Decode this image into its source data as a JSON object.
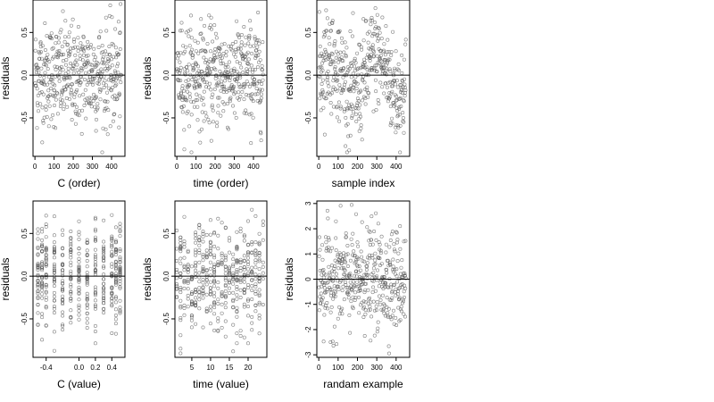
{
  "colors": {
    "background": "#ffffff",
    "frame": "#000000",
    "points": "#555555",
    "zero_line": "#000000"
  },
  "chart_data": [
    {
      "type": "scatter",
      "xlabel": "C (order)",
      "ylabel": "residuals",
      "xlim": [
        -10,
        470
      ],
      "ylim": [
        -0.95,
        0.88
      ],
      "xticks": [
        0,
        100,
        200,
        300,
        400
      ],
      "xtick_labels": [
        "0",
        "100",
        "200",
        "300",
        "400"
      ],
      "yticks": [
        -0.5,
        0,
        0.5
      ],
      "ytick_labels": [
        "-0.5",
        "0.0",
        "0.5"
      ],
      "reference_line": {
        "y": 0
      },
      "points": {
        "n": 450,
        "x_range": [
          1,
          450
        ],
        "spread": 0.3,
        "pattern": "noise"
      }
    },
    {
      "type": "scatter",
      "xlabel": "time (order)",
      "ylabel": "residuals",
      "xlim": [
        -10,
        470
      ],
      "ylim": [
        -0.95,
        0.88
      ],
      "xticks": [
        0,
        100,
        200,
        300,
        400
      ],
      "xtick_labels": [
        "0",
        "100",
        "200",
        "300",
        "400"
      ],
      "yticks": [
        -0.5,
        0,
        0.5
      ],
      "ytick_labels": [
        "-0.5",
        "0.0",
        "0.5"
      ],
      "reference_line": {
        "y": 0
      },
      "points": {
        "n": 450,
        "x_range": [
          1,
          450
        ],
        "spread": 0.3,
        "pattern": "noise"
      }
    },
    {
      "type": "scatter",
      "xlabel": "sample index",
      "ylabel": "residuals",
      "xlim": [
        -10,
        470
      ],
      "ylim": [
        -0.95,
        0.88
      ],
      "xticks": [
        0,
        100,
        200,
        300,
        400
      ],
      "xtick_labels": [
        "0",
        "100",
        "200",
        "300",
        "400"
      ],
      "yticks": [
        -0.5,
        0,
        0.5
      ],
      "ytick_labels": [
        "-0.5",
        "0.0",
        "0.5"
      ],
      "reference_line": {
        "y": 0
      },
      "points": {
        "n": 450,
        "x_range": [
          1,
          450
        ],
        "spread": 0.3,
        "pattern": "wavy"
      }
    },
    {
      "type": "scatter",
      "xlabel": "C (value)",
      "ylabel": "residuals",
      "xlim": [
        -0.56,
        0.56
      ],
      "ylim": [
        -0.95,
        0.88
      ],
      "xticks": [
        -0.4,
        0,
        0.2,
        0.4
      ],
      "xtick_labels": [
        "-0.4",
        "0.0",
        "0.2",
        "0.4"
      ],
      "yticks": [
        -0.5,
        0,
        0.5
      ],
      "ytick_labels": [
        "-0.5",
        "0.0",
        "0.5"
      ],
      "reference_line": {
        "y": 0
      },
      "points": {
        "n": 450,
        "x_values": [
          -0.5,
          -0.45,
          -0.4,
          -0.3,
          -0.2,
          -0.1,
          0,
          0.1,
          0.2,
          0.3,
          0.4,
          0.45,
          0.5
        ],
        "spread": 0.3,
        "pattern": "columns"
      }
    },
    {
      "type": "scatter",
      "xlabel": "time (value)",
      "ylabel": "residuals",
      "xlim": [
        0.5,
        25
      ],
      "ylim": [
        -0.95,
        0.88
      ],
      "xticks": [
        5,
        10,
        15,
        20
      ],
      "xtick_labels": [
        "5",
        "10",
        "15",
        "20"
      ],
      "yticks": [
        -0.5,
        0,
        0.5
      ],
      "ytick_labels": [
        "-0.5",
        "0.0",
        "0.5"
      ],
      "reference_line": {
        "y": 0
      },
      "points": {
        "n": 450,
        "x_range": [
          1,
          24
        ],
        "spread": 0.3,
        "pattern": "columns"
      }
    },
    {
      "type": "scatter",
      "xlabel": "randam example",
      "ylabel": "residuals",
      "xlim": [
        -10,
        470
      ],
      "ylim": [
        -3.1,
        3.1
      ],
      "xticks": [
        0,
        100,
        200,
        300,
        400
      ],
      "xtick_labels": [
        "0",
        "100",
        "200",
        "300",
        "400"
      ],
      "yticks": [
        -3,
        -2,
        -1,
        0,
        1,
        2,
        3
      ],
      "ytick_labels": [
        "-3",
        "-2",
        "-1",
        "0",
        "1",
        "2",
        "3"
      ],
      "reference_line": {
        "y": 0
      },
      "points": {
        "n": 450,
        "x_range": [
          1,
          450
        ],
        "spread": 1,
        "pattern": "noise"
      }
    }
  ]
}
